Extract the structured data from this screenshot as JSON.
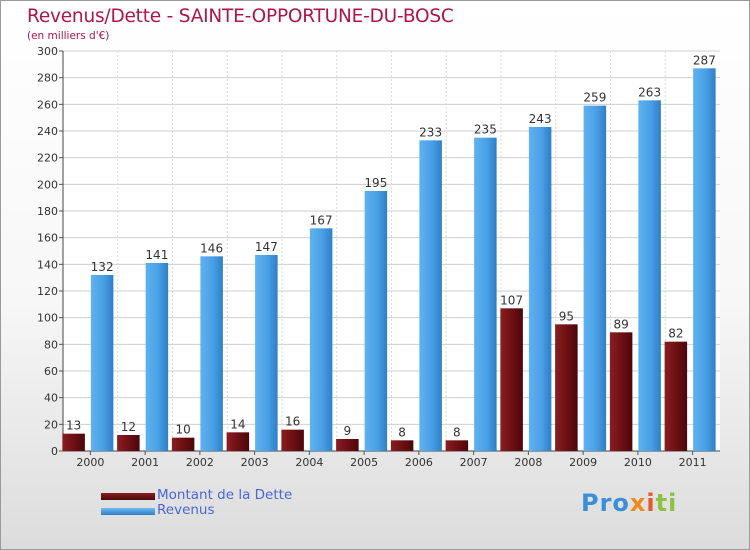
{
  "header": {
    "title": "Revenus/Dette - SAINTE-OPPORTUNE-DU-BOSC",
    "subtitle": "(en milliers d'€)"
  },
  "legend": {
    "items": [
      {
        "label": "Montant de la Dette",
        "color": "#6b0e12"
      },
      {
        "label": "Revenus",
        "color": "#4aa0e6"
      }
    ]
  },
  "logo": {
    "parts": [
      "Pro",
      "x",
      "i",
      "ti"
    ]
  },
  "chart_data": {
    "type": "bar",
    "title": "Revenus/Dette - SAINTE-OPPORTUNE-DU-BOSC",
    "ylabel": "(en milliers d'€)",
    "xlabel": "",
    "categories": [
      "2000",
      "2001",
      "2002",
      "2003",
      "2004",
      "2005",
      "2006",
      "2007",
      "2008",
      "2009",
      "2010",
      "2011"
    ],
    "series": [
      {
        "name": "Montant de la Dette",
        "color": "#6b0e12",
        "values": [
          13,
          12,
          10,
          14,
          16,
          9,
          8,
          8,
          107,
          95,
          89,
          82
        ]
      },
      {
        "name": "Revenus",
        "color": "#4aa0e6",
        "values": [
          132,
          141,
          146,
          147,
          167,
          195,
          233,
          235,
          243,
          259,
          263,
          287
        ]
      }
    ],
    "ylim": [
      0,
      300
    ],
    "yticks": [
      0,
      20,
      40,
      60,
      80,
      100,
      120,
      140,
      160,
      180,
      200,
      220,
      240,
      260,
      280,
      300
    ],
    "grid": true,
    "legend_position": "bottom-left"
  }
}
